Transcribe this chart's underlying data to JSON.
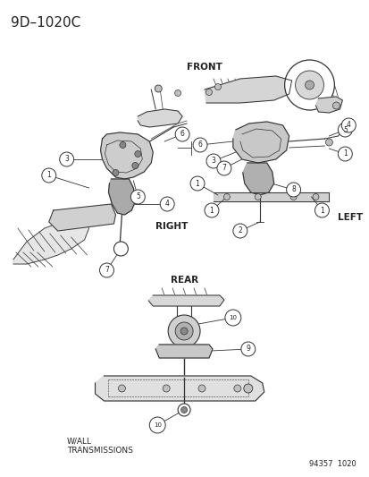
{
  "title": "9D–1020C",
  "background_color": "#f5f5f0",
  "diagram_id": "94357  1020",
  "labels": {
    "front": "FRONT",
    "rear": "REAR",
    "right": "RIGHT",
    "left": "LEFT",
    "wall_transmissions": "W/ALL\nTRANSMISSIONS"
  },
  "text_color": "#222222",
  "line_color": "#333333",
  "circle_edge": "#222222",
  "font_size_title": 11,
  "font_size_label": 7.5,
  "font_size_number": 6.0,
  "font_size_small": 6.5,
  "font_size_id": 6.0
}
